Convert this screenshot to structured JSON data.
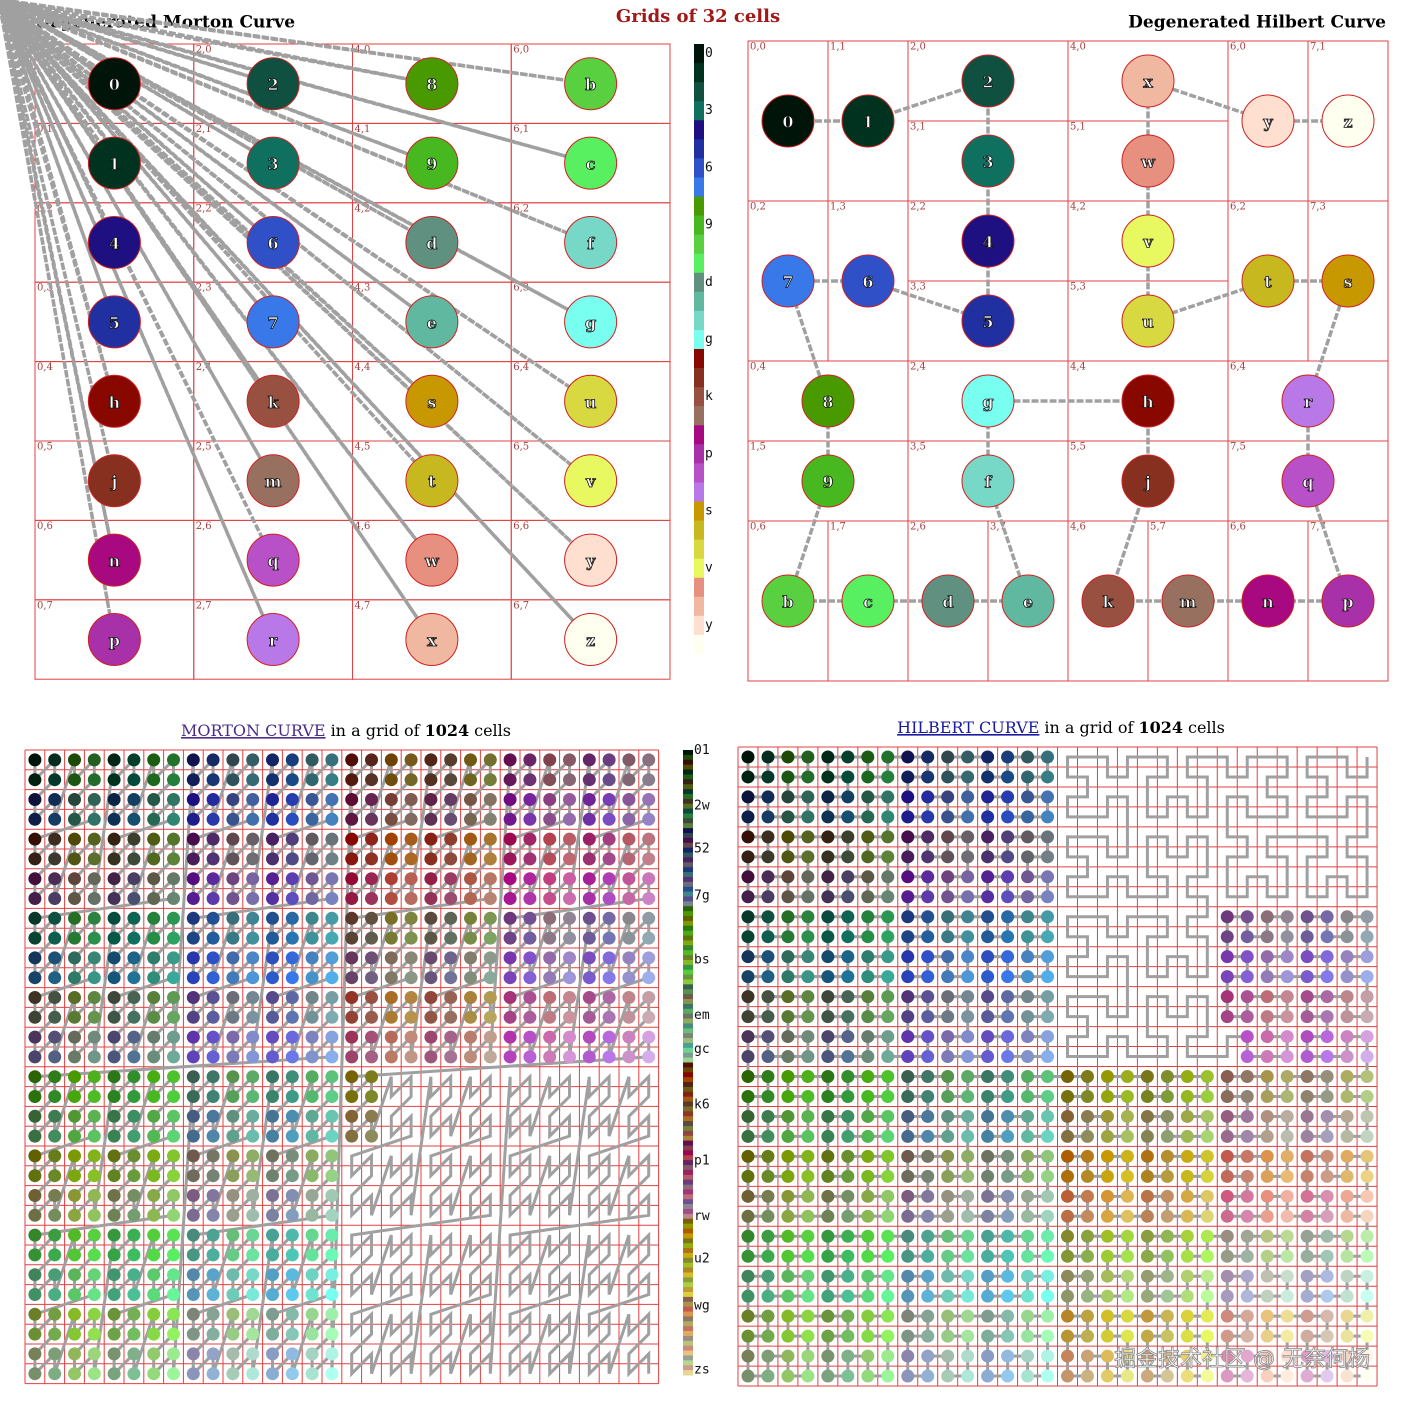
{
  "title": "Grids of 32 cells",
  "palette": {
    "labels": [
      "0",
      "1",
      "2",
      "3",
      "4",
      "5",
      "6",
      "7",
      "8",
      "9",
      "b",
      "c",
      "d",
      "e",
      "f",
      "g",
      "h",
      "j",
      "k",
      "m",
      "n",
      "p",
      "q",
      "r",
      "s",
      "t",
      "u",
      "v",
      "w",
      "x",
      "y",
      "z"
    ],
    "colors": [
      "#00140a",
      "#00331f",
      "#0f5040",
      "#0f7060",
      "#1e1080",
      "#2030a0",
      "#3050c8",
      "#3878e8",
      "#489a00",
      "#48b820",
      "#58d040",
      "#58f060",
      "#609080",
      "#60b8a0",
      "#78d8c8",
      "#78fff0",
      "#880800",
      "#883020",
      "#985040",
      "#987060",
      "#a80880",
      "#a830a8",
      "#b850c8",
      "#b878e8",
      "#c89800",
      "#c8b820",
      "#d8d840",
      "#e8f860",
      "#e89080",
      "#f0b8a0",
      "#ffe0d0",
      "#fffff0"
    ],
    "ticks": [
      "0",
      "3",
      "6",
      "9",
      "d",
      "g",
      "k",
      "p",
      "s",
      "v",
      "y"
    ]
  },
  "morton32": {
    "title": "Degenerated Morton Curve",
    "cells": [
      "0,0",
      "0,1",
      "2,0",
      "2,1",
      "0,2",
      "0,3",
      "2,2",
      "2,3",
      "4,0",
      "4,1",
      "6,0",
      "6,1",
      "4,2",
      "4,3",
      "6,2",
      "6,3",
      "0,4",
      "0,5",
      "2,4",
      "2,5",
      "0,6",
      "0,7",
      "2,6",
      "2,7",
      "4,4",
      "4,5",
      "6,4",
      "6,5",
      "4,6",
      "4,7",
      "6,6",
      "6,7"
    ]
  },
  "hilbert32": {
    "title": "Degenerated Hilbert Curve",
    "cells": [
      "0,0",
      "1,1",
      "2,0",
      "3,1",
      "2,2",
      "3,3",
      "1,3",
      "0,2",
      "0,4",
      "1,5",
      "0,6",
      "1,7",
      "2,6",
      "3,7",
      "3,5",
      "2,4",
      "4,4",
      "5,5",
      "4,6",
      "5,7",
      "6,6",
      "7,7",
      "7,5",
      "6,4",
      "7,3",
      "6,2",
      "5,3",
      "4,2",
      "5,1",
      "4,0",
      "6,0",
      "7,1"
    ]
  },
  "morton1024": {
    "link": "MORTON CURVE",
    "text": "in a grid of",
    "count": 1024,
    "unit": "cells",
    "colorbar_ticks": [
      "01",
      "2w",
      "52",
      "7g",
      "bs",
      "em",
      "gc",
      "k6",
      "p1",
      "rw",
      "u2",
      "wg",
      "zs"
    ]
  },
  "hilbert1024": {
    "link": "HILBERT CURVE",
    "text": "in a grid of",
    "count": 1024,
    "unit": "cells"
  },
  "watermark": "掘金技术社区 @ 无奈何杨"
}
